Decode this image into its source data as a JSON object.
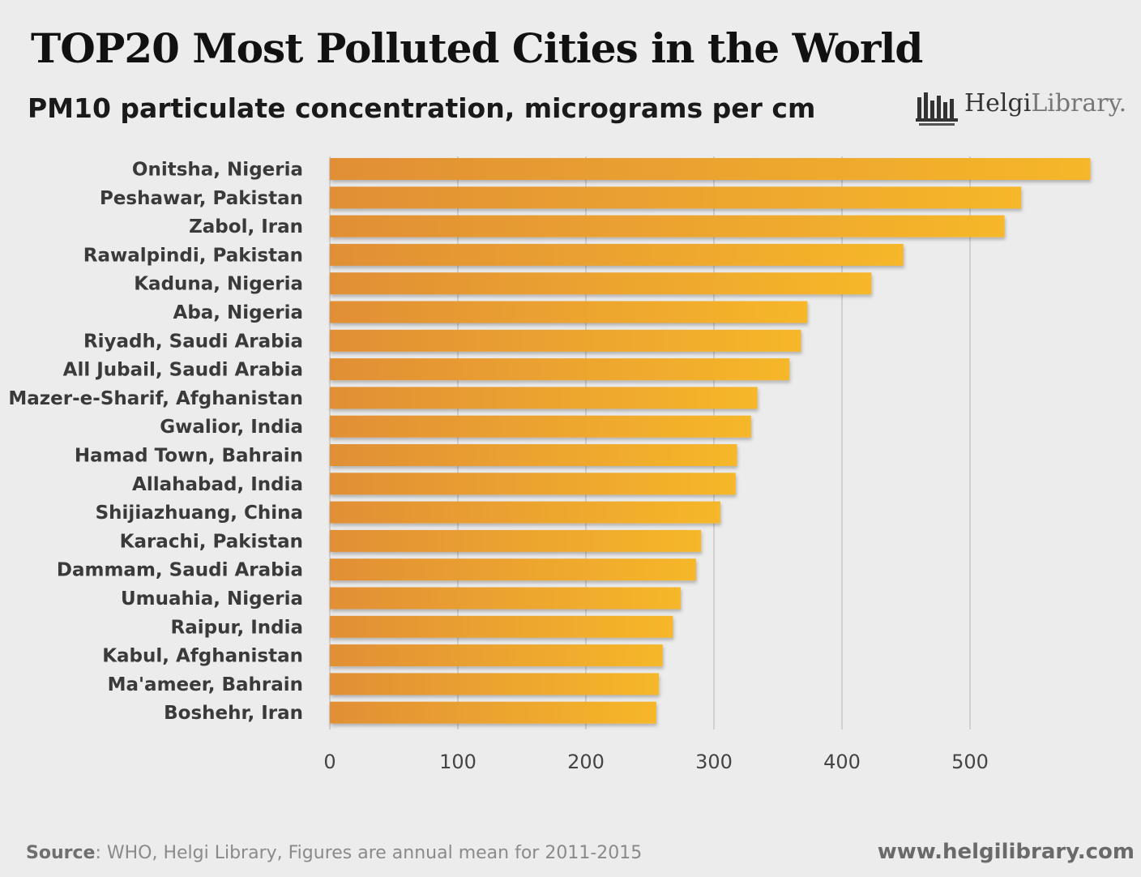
{
  "title": "TOP20 Most Polluted Cities in the World",
  "subtitle": "PM10 particulate concentration, micrograms per cm",
  "logo": {
    "name_bold": "Helgi",
    "name_light": "Library."
  },
  "footer": {
    "source_label": "Source",
    "source_text": ": WHO, Helgi Library, Figures are annual mean for 2011-2015",
    "url": "www.helgilibrary.com"
  },
  "colors": {
    "bar_start": "#E18F35",
    "bar_end": "#F6B72A",
    "grid": "#d0d0d0",
    "background": "#ececec"
  },
  "chart_data": {
    "type": "bar",
    "orientation": "horizontal",
    "title": "TOP20 Most Polluted Cities in the World",
    "subtitle": "PM10 particulate concentration, micrograms per cm",
    "categories": [
      "Onitsha, Nigeria",
      "Peshawar, Pakistan",
      "Zabol, Iran",
      "Rawalpindi, Pakistan",
      "Kaduna, Nigeria",
      "Aba, Nigeria",
      "Riyadh, Saudi Arabia",
      "All Jubail, Saudi Arabia",
      "Mazer-e-Sharif, Afghanistan",
      "Gwalior, India",
      "Hamad Town, Bahrain",
      "Allahabad, India",
      "Shijiazhuang, China",
      "Karachi, Pakistan",
      "Dammam, Saudi Arabia",
      "Umuahia, Nigeria",
      "Raipur, India",
      "Kabul, Afghanistan",
      "Ma'ameer, Bahrain",
      "Boshehr, Iran"
    ],
    "values": [
      594,
      540,
      527,
      448,
      423,
      373,
      368,
      359,
      334,
      329,
      318,
      317,
      305,
      290,
      286,
      274,
      268,
      260,
      257,
      255
    ],
    "xlim": [
      0,
      600
    ],
    "xticks": [
      0,
      100,
      200,
      300,
      400,
      500
    ],
    "grid": true,
    "xlabel": "",
    "ylabel": ""
  }
}
